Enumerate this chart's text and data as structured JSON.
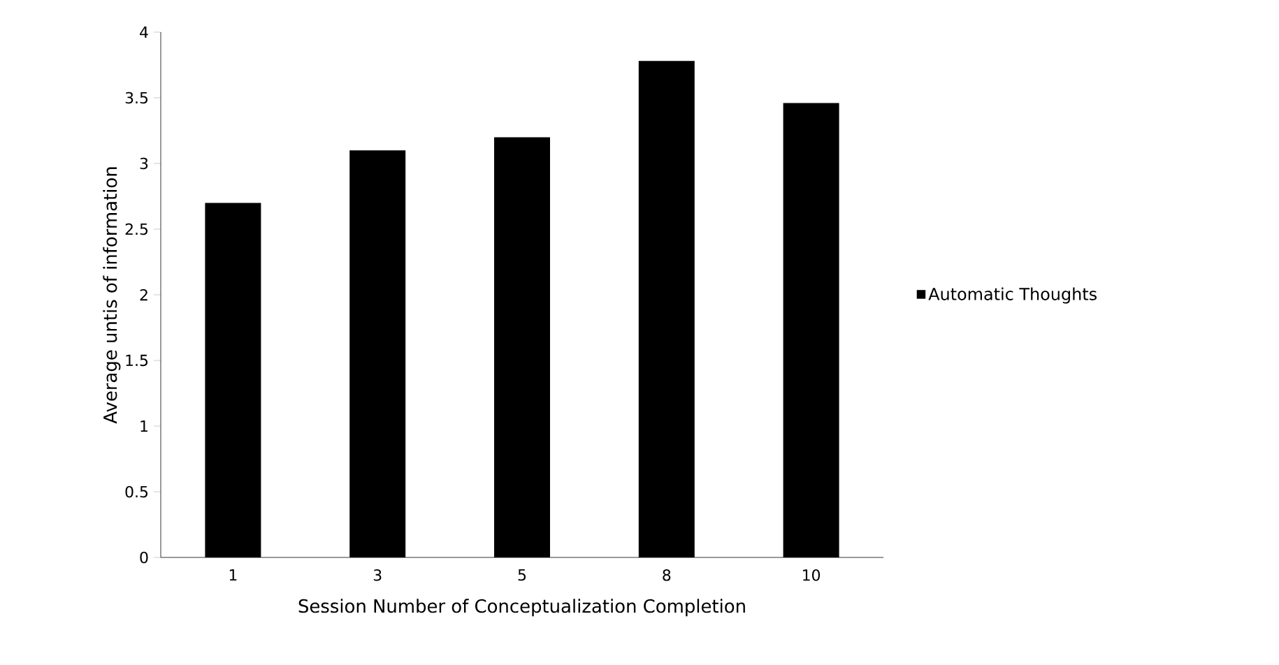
{
  "chart_data": {
    "type": "bar",
    "xlabel": "Session Number  of Conceptualization  Completion",
    "ylabel": "Average untis of information",
    "categories": [
      "1",
      "3",
      "5",
      "8",
      "10"
    ],
    "series": [
      {
        "name": "Automatic Thoughts",
        "color": "#000000",
        "values": [
          2.7,
          3.1,
          3.2,
          3.78,
          3.46
        ]
      }
    ],
    "ylim": [
      0,
      4
    ],
    "yticks": [
      0,
      0.5,
      1,
      1.5,
      2,
      2.5,
      3,
      3.5,
      4
    ],
    "grid": false,
    "legend": "right"
  }
}
